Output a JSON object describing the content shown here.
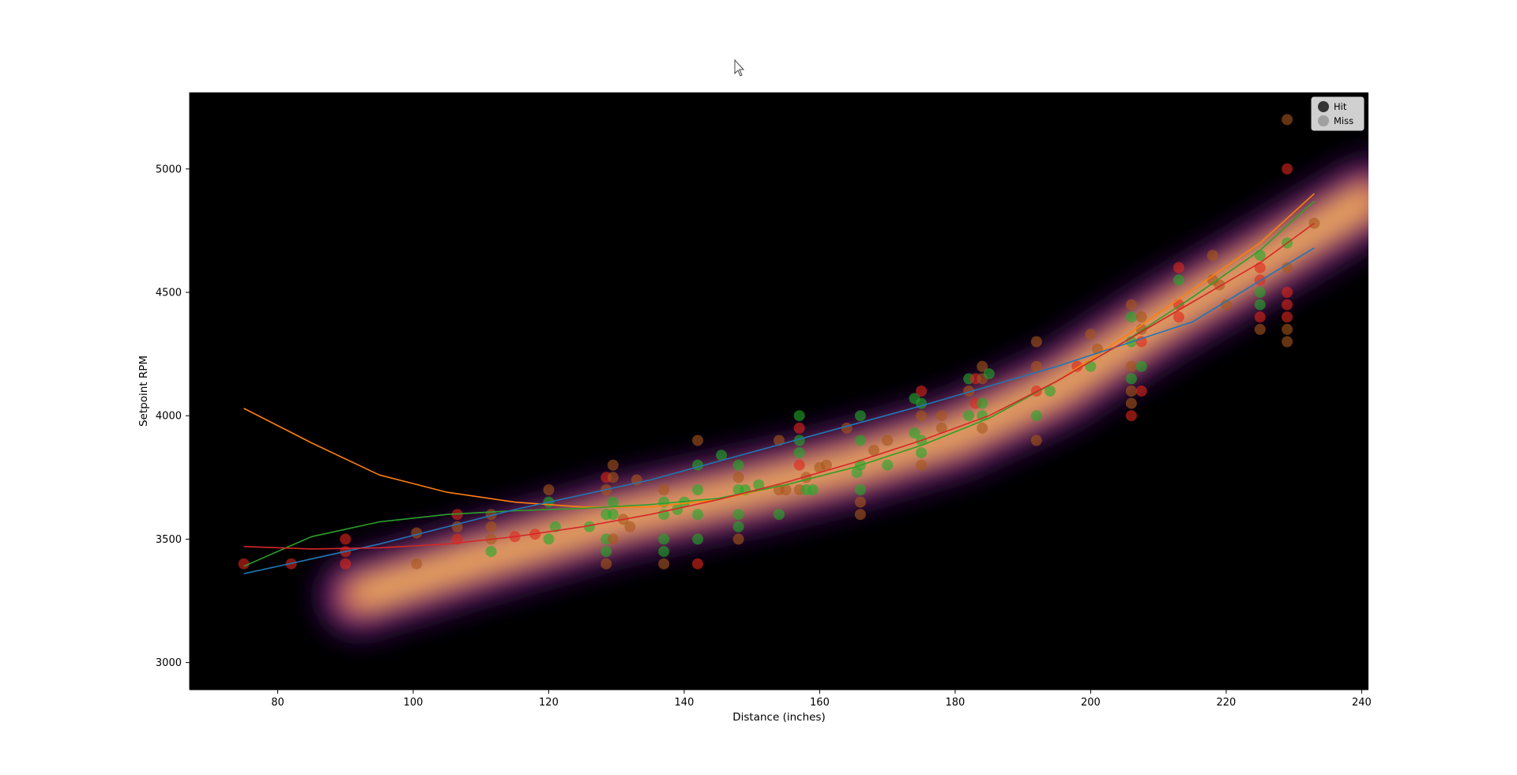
{
  "colors": {
    "hit": "#1faa2a",
    "miss": "#e0261a",
    "mid": "#a8561a",
    "plot_bg": "#000000",
    "fit_linear": "#1f77b4",
    "fit_quadratic": "#ff7f0e",
    "fit_cubic": "#2ca02c",
    "fit_smooth": "#d62728"
  },
  "chart_data": {
    "type": "scatter",
    "xlabel": "Distance (inches)",
    "ylabel": "Setpoint RPM",
    "xlim": [
      67,
      241
    ],
    "ylim": [
      2890,
      5310
    ],
    "x_ticks": [
      80,
      100,
      120,
      140,
      160,
      180,
      200,
      220,
      240
    ],
    "y_ticks": [
      3000,
      3500,
      4000,
      4500,
      5000
    ],
    "legend": {
      "position": "top-right",
      "entries": [
        {
          "label": "Hit",
          "swatch": "#222222"
        },
        {
          "label": "Miss",
          "swatch": "#9a9a9a"
        }
      ]
    },
    "background": "heatmap density (inferno colormap) of hits",
    "heatmap_ridge": [
      {
        "x": 92,
        "y": 3270
      },
      {
        "x": 110,
        "y": 3420
      },
      {
        "x": 130,
        "y": 3580
      },
      {
        "x": 150,
        "y": 3700
      },
      {
        "x": 165,
        "y": 3800
      },
      {
        "x": 180,
        "y": 3920
      },
      {
        "x": 195,
        "y": 4110
      },
      {
        "x": 210,
        "y": 4380
      },
      {
        "x": 225,
        "y": 4620
      },
      {
        "x": 241,
        "y": 4880
      }
    ],
    "series": [
      {
        "type": "line",
        "color_key": "fit_quadratic",
        "points": [
          [
            75,
            4030
          ],
          [
            85,
            3890
          ],
          [
            95,
            3760
          ],
          [
            105,
            3690
          ],
          [
            115,
            3650
          ],
          [
            125,
            3630
          ],
          [
            135,
            3630
          ],
          [
            145,
            3660
          ],
          [
            155,
            3720
          ],
          [
            165,
            3790
          ],
          [
            175,
            3880
          ],
          [
            185,
            3990
          ],
          [
            195,
            4140
          ],
          [
            205,
            4320
          ],
          [
            215,
            4510
          ],
          [
            225,
            4700
          ],
          [
            233,
            4900
          ]
        ]
      },
      {
        "type": "line",
        "color_key": "fit_cubic",
        "points": [
          [
            75,
            3390
          ],
          [
            85,
            3510
          ],
          [
            95,
            3570
          ],
          [
            105,
            3600
          ],
          [
            115,
            3615
          ],
          [
            125,
            3625
          ],
          [
            135,
            3640
          ],
          [
            145,
            3665
          ],
          [
            155,
            3720
          ],
          [
            165,
            3790
          ],
          [
            175,
            3880
          ],
          [
            185,
            3990
          ],
          [
            195,
            4140
          ],
          [
            205,
            4300
          ],
          [
            215,
            4480
          ],
          [
            225,
            4670
          ],
          [
            233,
            4870
          ]
        ]
      },
      {
        "type": "line",
        "color_key": "fit_linear",
        "points": [
          [
            75,
            3360
          ],
          [
            95,
            3480
          ],
          [
            115,
            3620
          ],
          [
            135,
            3740
          ],
          [
            155,
            3890
          ],
          [
            175,
            4040
          ],
          [
            195,
            4200
          ],
          [
            215,
            4380
          ],
          [
            233,
            4680
          ]
        ]
      },
      {
        "type": "line",
        "color_key": "fit_smooth",
        "points": [
          [
            75,
            3470
          ],
          [
            85,
            3460
          ],
          [
            95,
            3465
          ],
          [
            105,
            3480
          ],
          [
            115,
            3510
          ],
          [
            125,
            3550
          ],
          [
            135,
            3600
          ],
          [
            145,
            3660
          ],
          [
            155,
            3730
          ],
          [
            165,
            3810
          ],
          [
            175,
            3900
          ],
          [
            185,
            4000
          ],
          [
            195,
            4140
          ],
          [
            205,
            4300
          ],
          [
            215,
            4460
          ],
          [
            225,
            4620
          ],
          [
            233,
            4780
          ]
        ]
      }
    ],
    "points": [
      {
        "x": 75,
        "y": 3400,
        "r": "miss"
      },
      {
        "x": 82,
        "y": 3400,
        "r": "miss"
      },
      {
        "x": 90,
        "y": 3500,
        "r": "miss"
      },
      {
        "x": 90,
        "y": 3450,
        "r": "miss"
      },
      {
        "x": 90,
        "y": 3400,
        "r": "miss"
      },
      {
        "x": 100.5,
        "y": 3525,
        "r": "mid"
      },
      {
        "x": 100.5,
        "y": 3400,
        "r": "mid"
      },
      {
        "x": 106.5,
        "y": 3600,
        "r": "miss"
      },
      {
        "x": 106.5,
        "y": 3550,
        "r": "mid"
      },
      {
        "x": 106.5,
        "y": 3500,
        "r": "miss"
      },
      {
        "x": 111.5,
        "y": 3600,
        "r": "mid"
      },
      {
        "x": 111.5,
        "y": 3550,
        "r": "mid"
      },
      {
        "x": 111.5,
        "y": 3500,
        "r": "mid"
      },
      {
        "x": 111.5,
        "y": 3450,
        "r": "hit"
      },
      {
        "x": 115,
        "y": 3510,
        "r": "miss"
      },
      {
        "x": 118,
        "y": 3520,
        "r": "miss"
      },
      {
        "x": 120,
        "y": 3700,
        "r": "mid"
      },
      {
        "x": 120,
        "y": 3650,
        "r": "hit"
      },
      {
        "x": 120,
        "y": 3500,
        "r": "hit"
      },
      {
        "x": 121,
        "y": 3550,
        "r": "hit"
      },
      {
        "x": 126,
        "y": 3550,
        "r": "hit"
      },
      {
        "x": 128.5,
        "y": 3750,
        "r": "miss"
      },
      {
        "x": 128.5,
        "y": 3700,
        "r": "mid"
      },
      {
        "x": 128.5,
        "y": 3600,
        "r": "hit"
      },
      {
        "x": 128.5,
        "y": 3500,
        "r": "hit"
      },
      {
        "x": 128.5,
        "y": 3450,
        "r": "hit"
      },
      {
        "x": 128.5,
        "y": 3400,
        "r": "mid"
      },
      {
        "x": 129.5,
        "y": 3800,
        "r": "mid"
      },
      {
        "x": 129.5,
        "y": 3750,
        "r": "mid"
      },
      {
        "x": 129.5,
        "y": 3650,
        "r": "hit"
      },
      {
        "x": 129.5,
        "y": 3600,
        "r": "hit"
      },
      {
        "x": 129.5,
        "y": 3500,
        "r": "mid"
      },
      {
        "x": 131,
        "y": 3580,
        "r": "mid"
      },
      {
        "x": 132,
        "y": 3550,
        "r": "mid"
      },
      {
        "x": 133,
        "y": 3740,
        "r": "mid"
      },
      {
        "x": 137,
        "y": 3700,
        "r": "mid"
      },
      {
        "x": 137,
        "y": 3650,
        "r": "hit"
      },
      {
        "x": 137,
        "y": 3600,
        "r": "hit"
      },
      {
        "x": 137,
        "y": 3500,
        "r": "hit"
      },
      {
        "x": 137,
        "y": 3450,
        "r": "hit"
      },
      {
        "x": 137,
        "y": 3400,
        "r": "mid"
      },
      {
        "x": 139,
        "y": 3620,
        "r": "hit"
      },
      {
        "x": 140,
        "y": 3650,
        "r": "hit"
      },
      {
        "x": 142,
        "y": 3900,
        "r": "mid"
      },
      {
        "x": 142,
        "y": 3800,
        "r": "hit"
      },
      {
        "x": 142,
        "y": 3700,
        "r": "hit"
      },
      {
        "x": 142,
        "y": 3600,
        "r": "hit"
      },
      {
        "x": 142,
        "y": 3500,
        "r": "hit"
      },
      {
        "x": 142,
        "y": 3400,
        "r": "miss"
      },
      {
        "x": 145.5,
        "y": 3840,
        "r": "hit"
      },
      {
        "x": 148,
        "y": 3800,
        "r": "hit"
      },
      {
        "x": 148,
        "y": 3750,
        "r": "mid"
      },
      {
        "x": 148,
        "y": 3700,
        "r": "hit"
      },
      {
        "x": 148,
        "y": 3600,
        "r": "hit"
      },
      {
        "x": 148,
        "y": 3550,
        "r": "hit"
      },
      {
        "x": 148,
        "y": 3500,
        "r": "mid"
      },
      {
        "x": 149,
        "y": 3700,
        "r": "hit"
      },
      {
        "x": 151,
        "y": 3720,
        "r": "hit"
      },
      {
        "x": 154,
        "y": 3900,
        "r": "mid"
      },
      {
        "x": 154,
        "y": 3700,
        "r": "mid"
      },
      {
        "x": 154,
        "y": 3600,
        "r": "hit"
      },
      {
        "x": 155,
        "y": 3700,
        "r": "mid"
      },
      {
        "x": 157,
        "y": 4000,
        "r": "hit"
      },
      {
        "x": 157,
        "y": 3950,
        "r": "miss"
      },
      {
        "x": 157,
        "y": 3900,
        "r": "hit"
      },
      {
        "x": 157,
        "y": 3850,
        "r": "hit"
      },
      {
        "x": 157,
        "y": 3800,
        "r": "miss"
      },
      {
        "x": 157,
        "y": 3700,
        "r": "mid"
      },
      {
        "x": 158,
        "y": 3750,
        "r": "mid"
      },
      {
        "x": 158,
        "y": 3700,
        "r": "hit"
      },
      {
        "x": 159,
        "y": 3700,
        "r": "hit"
      },
      {
        "x": 160,
        "y": 3790,
        "r": "mid"
      },
      {
        "x": 161,
        "y": 3800,
        "r": "mid"
      },
      {
        "x": 164,
        "y": 3950,
        "r": "mid"
      },
      {
        "x": 165.5,
        "y": 3770,
        "r": "hit"
      },
      {
        "x": 166,
        "y": 4000,
        "r": "hit"
      },
      {
        "x": 166,
        "y": 3900,
        "r": "hit"
      },
      {
        "x": 166,
        "y": 3800,
        "r": "hit"
      },
      {
        "x": 166,
        "y": 3700,
        "r": "hit"
      },
      {
        "x": 166,
        "y": 3650,
        "r": "mid"
      },
      {
        "x": 166,
        "y": 3600,
        "r": "mid"
      },
      {
        "x": 168,
        "y": 3860,
        "r": "mid"
      },
      {
        "x": 170,
        "y": 3900,
        "r": "mid"
      },
      {
        "x": 170,
        "y": 3800,
        "r": "hit"
      },
      {
        "x": 174,
        "y": 4070,
        "r": "hit"
      },
      {
        "x": 174,
        "y": 3930,
        "r": "hit"
      },
      {
        "x": 175,
        "y": 4100,
        "r": "miss"
      },
      {
        "x": 175,
        "y": 4050,
        "r": "hit"
      },
      {
        "x": 175,
        "y": 4000,
        "r": "mid"
      },
      {
        "x": 175,
        "y": 3900,
        "r": "hit"
      },
      {
        "x": 175,
        "y": 3850,
        "r": "hit"
      },
      {
        "x": 175,
        "y": 3800,
        "r": "mid"
      },
      {
        "x": 178,
        "y": 4000,
        "r": "mid"
      },
      {
        "x": 178,
        "y": 3950,
        "r": "mid"
      },
      {
        "x": 182,
        "y": 4150,
        "r": "hit"
      },
      {
        "x": 182,
        "y": 4100,
        "r": "mid"
      },
      {
        "x": 182,
        "y": 4000,
        "r": "hit"
      },
      {
        "x": 183,
        "y": 4150,
        "r": "miss"
      },
      {
        "x": 183,
        "y": 4050,
        "r": "miss"
      },
      {
        "x": 184,
        "y": 4200,
        "r": "mid"
      },
      {
        "x": 184,
        "y": 4150,
        "r": "mid"
      },
      {
        "x": 184,
        "y": 4050,
        "r": "hit"
      },
      {
        "x": 184,
        "y": 4000,
        "r": "hit"
      },
      {
        "x": 184,
        "y": 3950,
        "r": "mid"
      },
      {
        "x": 185,
        "y": 4170,
        "r": "hit"
      },
      {
        "x": 192,
        "y": 4300,
        "r": "mid"
      },
      {
        "x": 192,
        "y": 4200,
        "r": "mid"
      },
      {
        "x": 192,
        "y": 4100,
        "r": "miss"
      },
      {
        "x": 192,
        "y": 4000,
        "r": "hit"
      },
      {
        "x": 192,
        "y": 3900,
        "r": "mid"
      },
      {
        "x": 194,
        "y": 4100,
        "r": "hit"
      },
      {
        "x": 198,
        "y": 4200,
        "r": "miss"
      },
      {
        "x": 200,
        "y": 4330,
        "r": "mid"
      },
      {
        "x": 200,
        "y": 4200,
        "r": "hit"
      },
      {
        "x": 201,
        "y": 4270,
        "r": "mid"
      },
      {
        "x": 206,
        "y": 4450,
        "r": "mid"
      },
      {
        "x": 206,
        "y": 4400,
        "r": "hit"
      },
      {
        "x": 206,
        "y": 4300,
        "r": "hit"
      },
      {
        "x": 206,
        "y": 4200,
        "r": "mid"
      },
      {
        "x": 206,
        "y": 4150,
        "r": "hit"
      },
      {
        "x": 206,
        "y": 4100,
        "r": "mid"
      },
      {
        "x": 206,
        "y": 4050,
        "r": "mid"
      },
      {
        "x": 206,
        "y": 4000,
        "r": "miss"
      },
      {
        "x": 207.5,
        "y": 4400,
        "r": "mid"
      },
      {
        "x": 207.5,
        "y": 4350,
        "r": "mid"
      },
      {
        "x": 207.5,
        "y": 4300,
        "r": "miss"
      },
      {
        "x": 207.5,
        "y": 4200,
        "r": "hit"
      },
      {
        "x": 207.5,
        "y": 4100,
        "r": "miss"
      },
      {
        "x": 213,
        "y": 4600,
        "r": "miss"
      },
      {
        "x": 213,
        "y": 4550,
        "r": "hit"
      },
      {
        "x": 213,
        "y": 4450,
        "r": "miss"
      },
      {
        "x": 213,
        "y": 4400,
        "r": "miss"
      },
      {
        "x": 218,
        "y": 4650,
        "r": "mid"
      },
      {
        "x": 218,
        "y": 4550,
        "r": "mid"
      },
      {
        "x": 219,
        "y": 4530,
        "r": "mid"
      },
      {
        "x": 220,
        "y": 4450,
        "r": "mid"
      },
      {
        "x": 225,
        "y": 4650,
        "r": "hit"
      },
      {
        "x": 225,
        "y": 4600,
        "r": "miss"
      },
      {
        "x": 225,
        "y": 4550,
        "r": "miss"
      },
      {
        "x": 225,
        "y": 4500,
        "r": "hit"
      },
      {
        "x": 225,
        "y": 4450,
        "r": "hit"
      },
      {
        "x": 225,
        "y": 4400,
        "r": "miss"
      },
      {
        "x": 225,
        "y": 4350,
        "r": "mid"
      },
      {
        "x": 229,
        "y": 5200,
        "r": "mid"
      },
      {
        "x": 229,
        "y": 5000,
        "r": "miss"
      },
      {
        "x": 229,
        "y": 4700,
        "r": "hit"
      },
      {
        "x": 229,
        "y": 4600,
        "r": "mid"
      },
      {
        "x": 229,
        "y": 4500,
        "r": "miss"
      },
      {
        "x": 229,
        "y": 4450,
        "r": "miss"
      },
      {
        "x": 229,
        "y": 4400,
        "r": "miss"
      },
      {
        "x": 229,
        "y": 4350,
        "r": "mid"
      },
      {
        "x": 229,
        "y": 4300,
        "r": "mid"
      },
      {
        "x": 233,
        "y": 4780,
        "r": "mid"
      }
    ]
  }
}
